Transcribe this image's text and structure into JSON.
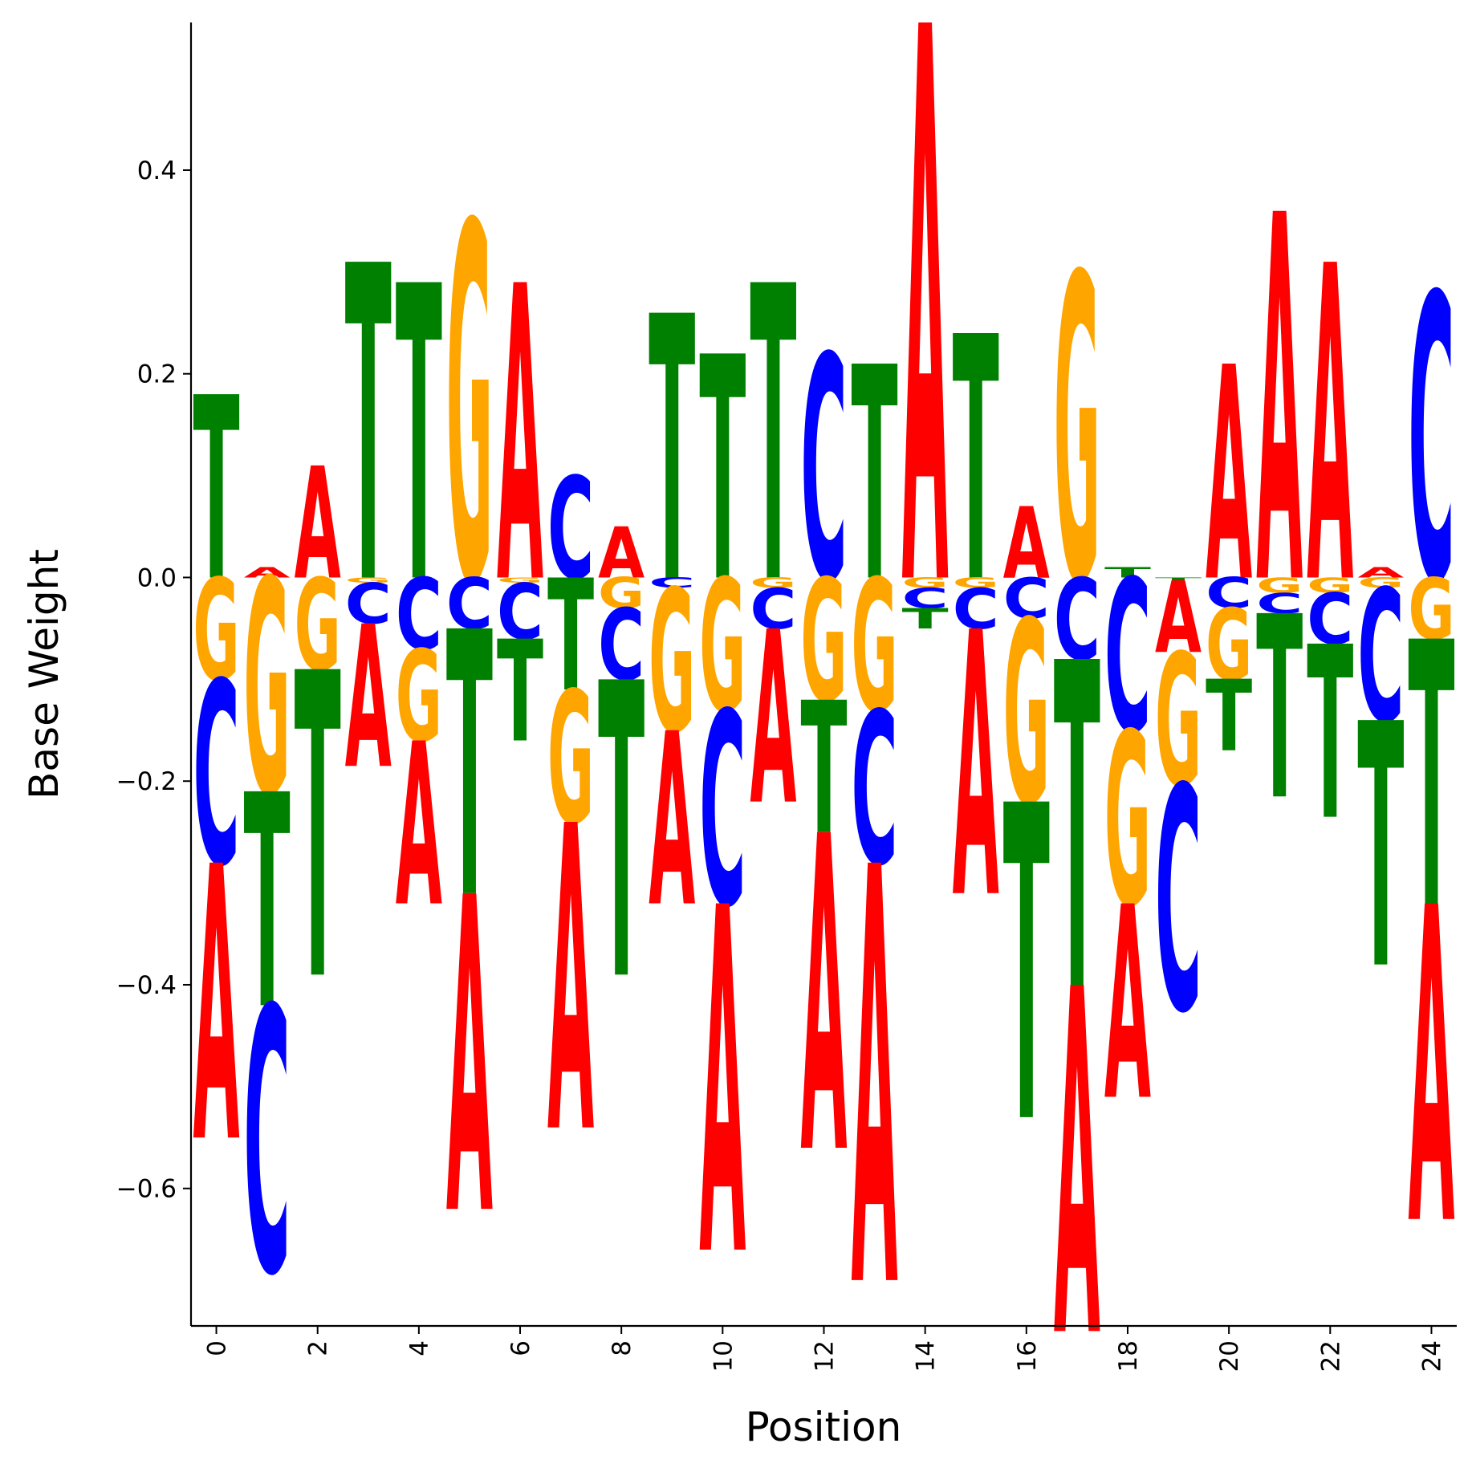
{
  "chart_data": {
    "type": "sequence-logo",
    "xlabel": "Position",
    "ylabel": "Base Weight",
    "ylim": [
      -0.735,
      0.545
    ],
    "xlim": [
      -0.5,
      24.5
    ],
    "y_ticks": [
      0.4,
      0.2,
      0.0,
      -0.2,
      -0.4,
      -0.6
    ],
    "y_tick_labels": [
      "0.4",
      "0.2",
      "0.0",
      "−0.2",
      "−0.4",
      "−0.6"
    ],
    "x_ticks": [
      0,
      2,
      4,
      6,
      8,
      10,
      12,
      14,
      16,
      18,
      20,
      22,
      24
    ],
    "x_tick_labels": [
      "0",
      "2",
      "4",
      "6",
      "8",
      "10",
      "12",
      "14",
      "16",
      "18",
      "20",
      "22",
      "24"
    ],
    "grid": false,
    "base_colors": {
      "A": "#ff0000",
      "C": "#0000ff",
      "G": "#ffa500",
      "T": "#008000"
    },
    "positions": [
      {
        "pos": 0,
        "A": -0.27,
        "C": -0.18,
        "G": -0.1,
        "T": 0.18
      },
      {
        "pos": 1,
        "A": 0.01,
        "C": -0.26,
        "G": -0.21,
        "T": -0.21
      },
      {
        "pos": 2,
        "A": 0.11,
        "C": 0.0,
        "G": -0.09,
        "T": -0.3
      },
      {
        "pos": 3,
        "A": -0.14,
        "C": -0.04,
        "G": -0.005,
        "T": 0.31
      },
      {
        "pos": 4,
        "A": -0.16,
        "C": -0.07,
        "G": -0.09,
        "T": 0.29
      },
      {
        "pos": 5,
        "A": -0.31,
        "C": -0.05,
        "G": 0.35,
        "T": -0.26
      },
      {
        "pos": 6,
        "A": 0.29,
        "C": -0.055,
        "G": -0.005,
        "T": -0.1
      },
      {
        "pos": 7,
        "A": -0.3,
        "C": 0.1,
        "G": -0.13,
        "T": -0.11
      },
      {
        "pos": 8,
        "A": 0.05,
        "C": -0.07,
        "G": -0.03,
        "T": -0.29
      },
      {
        "pos": 9,
        "A": -0.17,
        "C": -0.01,
        "G": -0.14,
        "T": 0.26
      },
      {
        "pos": 10,
        "A": -0.34,
        "C": -0.19,
        "G": -0.13,
        "T": 0.22
      },
      {
        "pos": 11,
        "A": -0.17,
        "C": -0.04,
        "G": -0.01,
        "T": 0.29
      },
      {
        "pos": 12,
        "A": -0.31,
        "C": 0.22,
        "G": -0.12,
        "T": -0.13
      },
      {
        "pos": 13,
        "A": -0.41,
        "C": -0.15,
        "G": -0.13,
        "T": 0.21
      },
      {
        "pos": 14,
        "A": 0.545,
        "C": -0.02,
        "G": -0.01,
        "T": -0.02
      },
      {
        "pos": 15,
        "A": -0.26,
        "C": -0.04,
        "G": -0.01,
        "T": 0.24
      },
      {
        "pos": 16,
        "A": 0.07,
        "C": -0.04,
        "G": -0.18,
        "T": -0.31
      },
      {
        "pos": 17,
        "A": -0.34,
        "C": -0.08,
        "G": 0.3,
        "T": -0.32
      },
      {
        "pos": 18,
        "A": -0.19,
        "C": -0.15,
        "G": -0.17,
        "T": 0.01
      },
      {
        "pos": 19,
        "A": -0.07,
        "C": -0.22,
        "G": -0.13,
        "T": -0.003
      },
      {
        "pos": 20,
        "A": 0.21,
        "C": -0.03,
        "G": -0.07,
        "T": -0.07
      },
      {
        "pos": 21,
        "A": 0.36,
        "C": -0.02,
        "G": -0.015,
        "T": -0.18
      },
      {
        "pos": 22,
        "A": 0.31,
        "C": -0.05,
        "G": -0.015,
        "T": -0.17
      },
      {
        "pos": 23,
        "A": 0.01,
        "C": -0.13,
        "G": -0.01,
        "T": -0.24
      },
      {
        "pos": 24,
        "A": -0.31,
        "C": 0.28,
        "G": -0.06,
        "T": -0.26
      }
    ]
  }
}
